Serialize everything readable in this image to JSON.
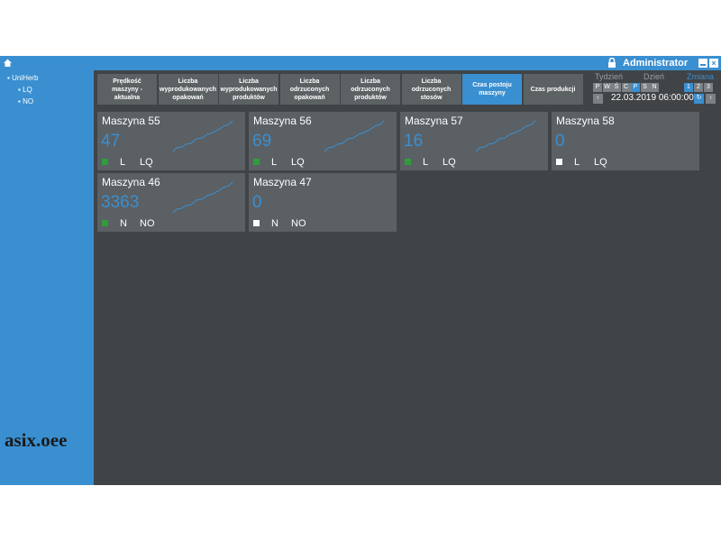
{
  "header": {
    "user": "Administrator"
  },
  "tree": {
    "root": "UniHerb",
    "children": [
      "LQ",
      "NO"
    ]
  },
  "logo": "asix.oee",
  "tabs": [
    "Prędkość maszyny - aktualna",
    "Liczba wyprodukowanych opakowań",
    "Liczba wyprodukowanych produktów",
    "Liczba odrzuconych opakowań",
    "Liczba odrzuconych produktów",
    "Liczba odrzuconych stosów",
    "Czas postoju maszyny",
    "Czas produkcji"
  ],
  "active_tab": 6,
  "period": {
    "labels": [
      "Tydzień",
      "Dzień",
      "Zmiana"
    ],
    "active_label": 2,
    "days": [
      "P",
      "W",
      "Ś",
      "C",
      "P",
      "S",
      "N"
    ],
    "active_day": 4,
    "shifts": [
      "1",
      "2",
      "3"
    ],
    "active_shift": 0,
    "date": "22.03.2019 06:00:00"
  },
  "cards": [
    {
      "title": "Maszyna 55",
      "value": 47,
      "status": "#2e9d3a",
      "line": "L",
      "product": "LQ"
    },
    {
      "title": "Maszyna 56",
      "value": 69,
      "status": "#2e9d3a",
      "line": "L",
      "product": "LQ"
    },
    {
      "title": "Maszyna 57",
      "value": 16,
      "status": "#2e9d3a",
      "line": "L",
      "product": "LQ"
    },
    {
      "title": "Maszyna 58",
      "value": 0,
      "status": "#ffffff",
      "line": "L",
      "product": "LQ"
    },
    {
      "title": "Maszyna 46",
      "value": 3363,
      "status": "#2e9d3a",
      "line": "N",
      "product": "NO"
    },
    {
      "title": "Maszyna 47",
      "value": 0,
      "status": "#ffffff",
      "line": "N",
      "product": "NO"
    }
  ]
}
